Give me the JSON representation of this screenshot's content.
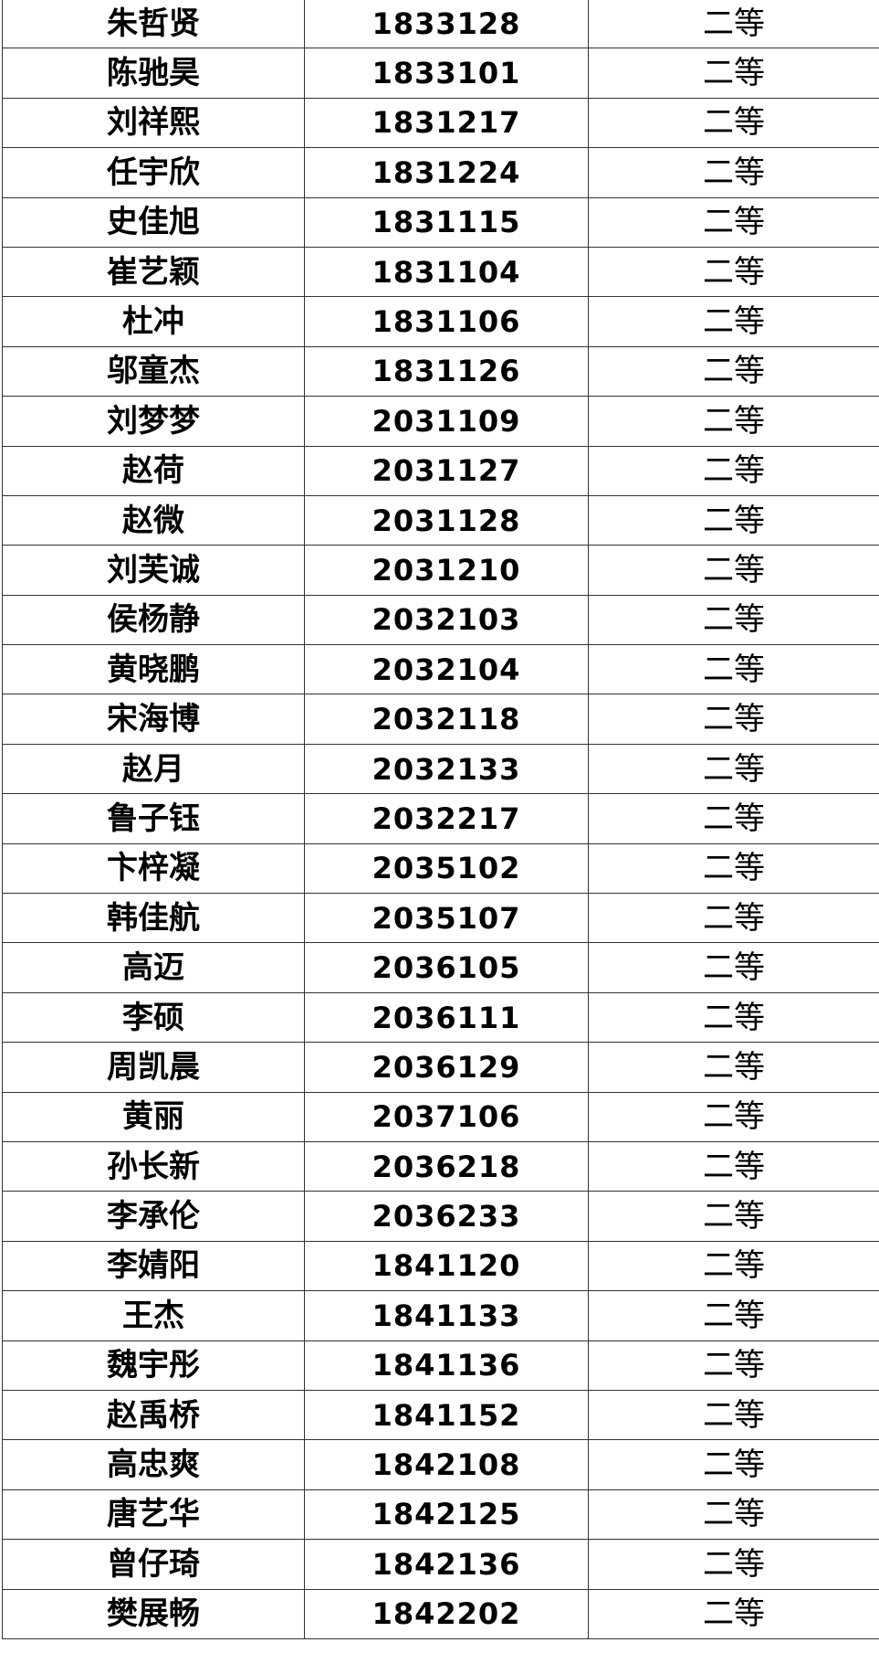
{
  "table": {
    "rows": [
      {
        "name": "朱哲贤",
        "id": "1833128",
        "grade": "二等"
      },
      {
        "name": "陈驰昊",
        "id": "1833101",
        "grade": "二等"
      },
      {
        "name": "刘祥熙",
        "id": "1831217",
        "grade": "二等"
      },
      {
        "name": "任宇欣",
        "id": "1831224",
        "grade": "二等"
      },
      {
        "name": "史佳旭",
        "id": "1831115",
        "grade": "二等"
      },
      {
        "name": "崔艺颖",
        "id": "1831104",
        "grade": "二等"
      },
      {
        "name": "杜冲",
        "id": "1831106",
        "grade": "二等"
      },
      {
        "name": "邬童杰",
        "id": "1831126",
        "grade": "二等"
      },
      {
        "name": "刘梦梦",
        "id": "2031109",
        "grade": "二等"
      },
      {
        "name": "赵荷",
        "id": "2031127",
        "grade": "二等"
      },
      {
        "name": "赵微",
        "id": "2031128",
        "grade": "二等"
      },
      {
        "name": "刘芙诚",
        "id": "2031210",
        "grade": "二等"
      },
      {
        "name": "侯杨静",
        "id": "2032103",
        "grade": "二等"
      },
      {
        "name": "黄晓鹏",
        "id": "2032104",
        "grade": "二等"
      },
      {
        "name": "宋海博",
        "id": "2032118",
        "grade": "二等"
      },
      {
        "name": "赵月",
        "id": "2032133",
        "grade": "二等"
      },
      {
        "name": "鲁子钰",
        "id": "2032217",
        "grade": "二等"
      },
      {
        "name": "卞梓凝",
        "id": "2035102",
        "grade": "二等"
      },
      {
        "name": "韩佳航",
        "id": "2035107",
        "grade": "二等"
      },
      {
        "name": "高迈",
        "id": "2036105",
        "grade": "二等"
      },
      {
        "name": "李硕",
        "id": "2036111",
        "grade": "二等"
      },
      {
        "name": "周凯晨",
        "id": "2036129",
        "grade": "二等"
      },
      {
        "name": "黄丽",
        "id": "2037106",
        "grade": "二等"
      },
      {
        "name": "孙长新",
        "id": "2036218",
        "grade": "二等"
      },
      {
        "name": "李承伦",
        "id": "2036233",
        "grade": "二等"
      },
      {
        "name": "李婧阳",
        "id": "1841120",
        "grade": "二等"
      },
      {
        "name": "王杰",
        "id": "1841133",
        "grade": "二等"
      },
      {
        "name": "魏宇彤",
        "id": "1841136",
        "grade": "二等"
      },
      {
        "name": "赵禹桥",
        "id": "1841152",
        "grade": "二等"
      },
      {
        "name": "高忠爽",
        "id": "1842108",
        "grade": "二等"
      },
      {
        "name": "唐艺华",
        "id": "1842125",
        "grade": "二等"
      },
      {
        "name": "曾仔琦",
        "id": "1842136",
        "grade": "二等"
      },
      {
        "name": "樊展畅",
        "id": "1842202",
        "grade": "二等"
      }
    ]
  }
}
